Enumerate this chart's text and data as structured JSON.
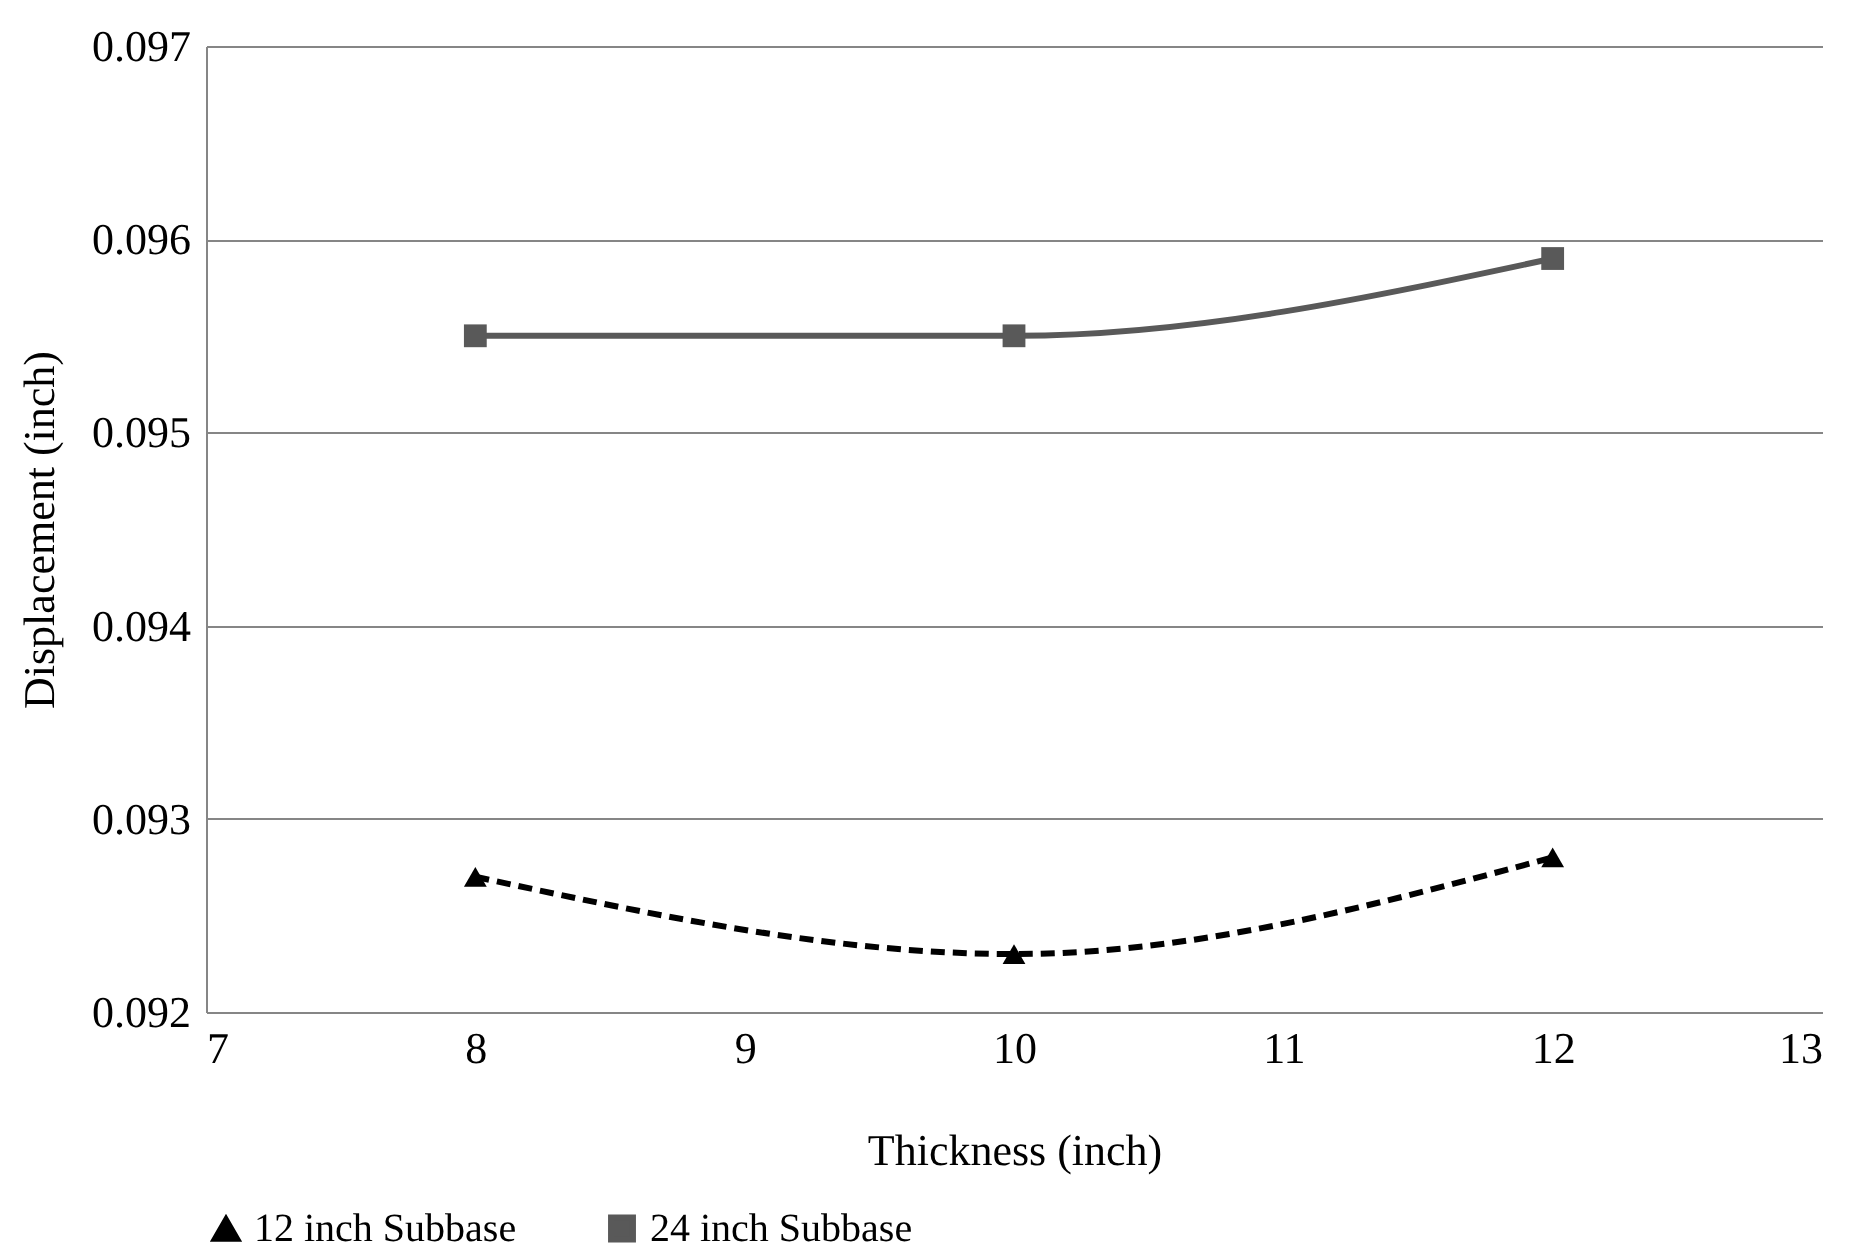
{
  "chart_data": {
    "type": "line",
    "xlabel": "Thickness (inch)",
    "ylabel": "Displacement (inch)",
    "x": [
      8,
      10,
      12
    ],
    "series": [
      {
        "name": "12 inch Subbase",
        "color": "#000000",
        "line_style": "dashed",
        "marker": "triangle",
        "values": [
          0.0927,
          0.0923,
          0.0928
        ]
      },
      {
        "name": "24 inch Subbase",
        "color": "#595959",
        "line_style": "solid",
        "marker": "square",
        "values": [
          0.0955,
          0.0955,
          0.0959
        ]
      }
    ],
    "xlim": [
      7,
      13
    ],
    "xticks": [
      7,
      8,
      9,
      10,
      11,
      12,
      13
    ],
    "ylim": [
      0.092,
      0.097
    ],
    "yticks": [
      0.092,
      0.093,
      0.094,
      0.095,
      0.096,
      0.097
    ],
    "grid": "y",
    "legend": "bottom"
  }
}
